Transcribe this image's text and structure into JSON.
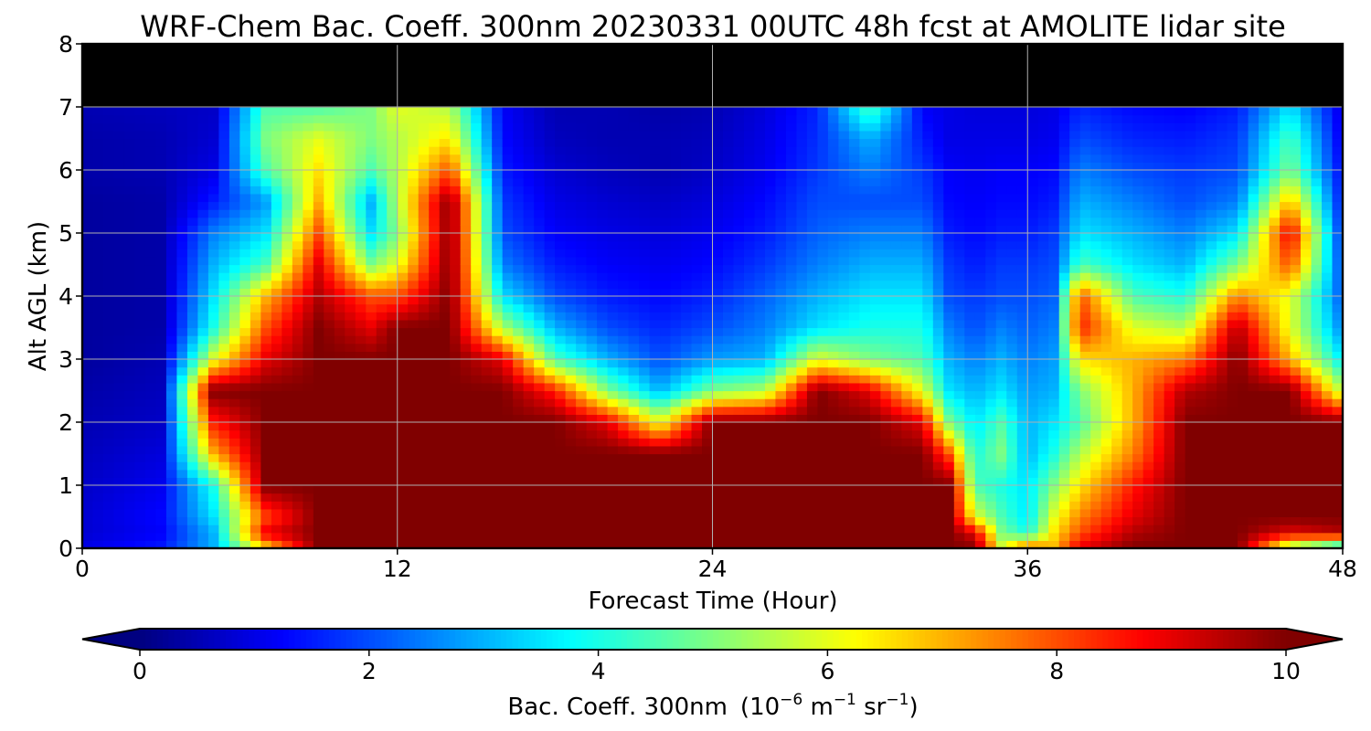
{
  "chart_data": {
    "type": "heatmap",
    "title": "WRF-Chem Bac. Coeff. 300nm  20230331 00UTC 48h fcst at AMOLITE lidar site",
    "xlabel": "Forecast Time (Hour)",
    "ylabel": "Alt AGL (km)",
    "xlim": [
      0,
      48
    ],
    "ylim": [
      0,
      8
    ],
    "x_ticks": [
      0,
      12,
      24,
      36,
      48
    ],
    "y_ticks": [
      0,
      1,
      2,
      3,
      4,
      5,
      6,
      7,
      8
    ],
    "grid": true,
    "colormap": "jet",
    "colorbar": {
      "orientation": "horizontal",
      "position": "bottom",
      "label_text": "Bac. Coeff. 300nm",
      "label_units": {
        "open": "(10",
        "exp1": "−6",
        "mid1": " m",
        "exp2": "−1",
        "mid2": " sr",
        "exp3": "−1",
        "close": ")"
      },
      "min": 0,
      "max": 10,
      "extend": "both",
      "ticks": [
        0,
        2,
        4,
        6,
        8,
        10
      ]
    },
    "x": [
      0,
      3,
      5,
      7,
      9,
      11,
      12,
      14,
      16,
      18,
      20,
      22,
      24,
      26,
      28,
      30,
      32,
      33,
      34,
      35,
      36,
      37,
      38,
      40,
      42,
      44,
      46,
      48
    ],
    "y": [
      0,
      0.25,
      0.5,
      1,
      1.5,
      2,
      2.5,
      3,
      3.5,
      4,
      4.5,
      5,
      5.5,
      6,
      6.5,
      7,
      8
    ],
    "z": [
      [
        1.0,
        0.8,
        0.8,
        0.7,
        0.6,
        0.5,
        0.4,
        0.3,
        0.3,
        0.3,
        0.3,
        0.3,
        0.3,
        0.4,
        0.4,
        0.5
      ],
      [
        1.5,
        1.2,
        1.3,
        1.1,
        0.9,
        0.7,
        0.6,
        0.5,
        0.4,
        0.4,
        0.4,
        0.4,
        0.4,
        0.5,
        0.5,
        0.6
      ],
      [
        3.0,
        3.0,
        3.5,
        4.0,
        7.0,
        8.5,
        10,
        6.0,
        4.0,
        3.5,
        3.0,
        2.5,
        1.5,
        1.0,
        0.8,
        0.7
      ],
      [
        6.5,
        9.0,
        8.0,
        10,
        10,
        10,
        10,
        9.0,
        8.0,
        7.0,
        4.5,
        3.5,
        2.8,
        4.5,
        5.0,
        4.5
      ],
      [
        10,
        10,
        10,
        10,
        10,
        10,
        10,
        10,
        10,
        9.5,
        9.0,
        8.0,
        7.0,
        6.5,
        6.0,
        4.5
      ],
      [
        10,
        10,
        10,
        10,
        10,
        10,
        10,
        10,
        9.0,
        8.0,
        5.0,
        3.5,
        3.0,
        4.5,
        5.0,
        5.0
      ],
      [
        10,
        10,
        10,
        10,
        10,
        10,
        10,
        10,
        10,
        8.0,
        6.0,
        5.0,
        5.5,
        5.5,
        5.5,
        6.0
      ],
      [
        10,
        10,
        10,
        10,
        10,
        10,
        10,
        10,
        10,
        10,
        10,
        10,
        10,
        8.0,
        6.5,
        5.5
      ],
      [
        10,
        10,
        10,
        10,
        10,
        10,
        10,
        9.0,
        5.5,
        3.5,
        2.5,
        2.0,
        1.8,
        1.5,
        1.3,
        1.2
      ],
      [
        10,
        10,
        10,
        10,
        10,
        10,
        8.5,
        4.5,
        3.0,
        2.0,
        1.5,
        1.2,
        1.0,
        0.8,
        0.6,
        0.5
      ],
      [
        10,
        10,
        10,
        10,
        10,
        9.0,
        5.0,
        3.0,
        2.0,
        1.5,
        1.2,
        1.0,
        0.8,
        0.6,
        0.5,
        0.5
      ],
      [
        10,
        10,
        10,
        10,
        10,
        6.0,
        3.0,
        2.0,
        1.6,
        1.3,
        1.1,
        0.9,
        0.7,
        0.5,
        0.5,
        0.4
      ],
      [
        10,
        10,
        10,
        10,
        10,
        10,
        5.0,
        2.8,
        2.0,
        1.6,
        1.3,
        1.1,
        0.9,
        0.7,
        0.6,
        0.5
      ],
      [
        10,
        10,
        10,
        10,
        10,
        10,
        5.5,
        3.0,
        2.5,
        2.2,
        1.8,
        1.5,
        1.3,
        1.1,
        1.0,
        0.9
      ],
      [
        10,
        10,
        10,
        10,
        10,
        10,
        10,
        6.0,
        3.5,
        3.0,
        2.5,
        2.2,
        2.0,
        1.8,
        1.7,
        1.6
      ],
      [
        10,
        10,
        10,
        10,
        10,
        10,
        9.0,
        5.0,
        4.0,
        3.5,
        3.0,
        2.5,
        2.0,
        2.5,
        3.0,
        4.5
      ],
      [
        10,
        10,
        10,
        10,
        10,
        9.0,
        6.0,
        4.5,
        4.0,
        3.5,
        3.0,
        2.5,
        2.0,
        1.8,
        1.5,
        1.2
      ],
      [
        10,
        10,
        10,
        10,
        8.0,
        5.0,
        3.5,
        3.0,
        2.5,
        2.0,
        1.8,
        1.5,
        1.3,
        1.2,
        1.0,
        1.0
      ],
      [
        10,
        9.0,
        6.0,
        4.5,
        4.0,
        3.5,
        3.0,
        2.5,
        2.0,
        1.8,
        1.5,
        1.3,
        1.2,
        1.1,
        1.0,
        0.9
      ],
      [
        6.0,
        5.0,
        4.5,
        4.0,
        5.0,
        4.5,
        3.5,
        3.0,
        2.5,
        2.0,
        1.8,
        1.5,
        1.3,
        1.2,
        1.0,
        0.9
      ],
      [
        8.0,
        4.0,
        3.5,
        3.5,
        3.0,
        3.0,
        2.8,
        2.5,
        2.2,
        2.0,
        1.8,
        1.5,
        1.3,
        1.2,
        1.0,
        0.9
      ],
      [
        7.0,
        6.5,
        6.0,
        5.0,
        4.0,
        3.5,
        3.0,
        2.8,
        2.5,
        2.2,
        2.0,
        1.8,
        1.5,
        1.3,
        1.1,
        1.0
      ],
      [
        9.0,
        8.0,
        7.5,
        6.5,
        5.5,
        4.5,
        5.0,
        6.5,
        8.5,
        8.0,
        4.5,
        3.5,
        3.0,
        2.5,
        2.0,
        1.6
      ],
      [
        10,
        9.5,
        9.0,
        8.5,
        7.5,
        7.0,
        7.0,
        7.0,
        6.0,
        4.5,
        3.5,
        3.0,
        2.5,
        2.0,
        1.6,
        1.3
      ],
      [
        10,
        10,
        10,
        10,
        10,
        10,
        9.5,
        7.5,
        5.5,
        4.0,
        3.0,
        2.5,
        2.0,
        1.8,
        1.5,
        1.2
      ],
      [
        10,
        10,
        10,
        10,
        10,
        10,
        10,
        10,
        9.5,
        7.5,
        5.0,
        3.5,
        2.5,
        2.0,
        1.8,
        1.5
      ],
      [
        5.0,
        9.0,
        10,
        10,
        10,
        10,
        10,
        7.0,
        6.0,
        6.0,
        8.0,
        9.0,
        7.0,
        5.0,
        4.5,
        3.5
      ],
      [
        3.0,
        9.5,
        10,
        10,
        10,
        10,
        5.5,
        3.5,
        2.5,
        2.0,
        1.8,
        1.5,
        1.3,
        1.2,
        1.0,
        0.9
      ]
    ]
  }
}
